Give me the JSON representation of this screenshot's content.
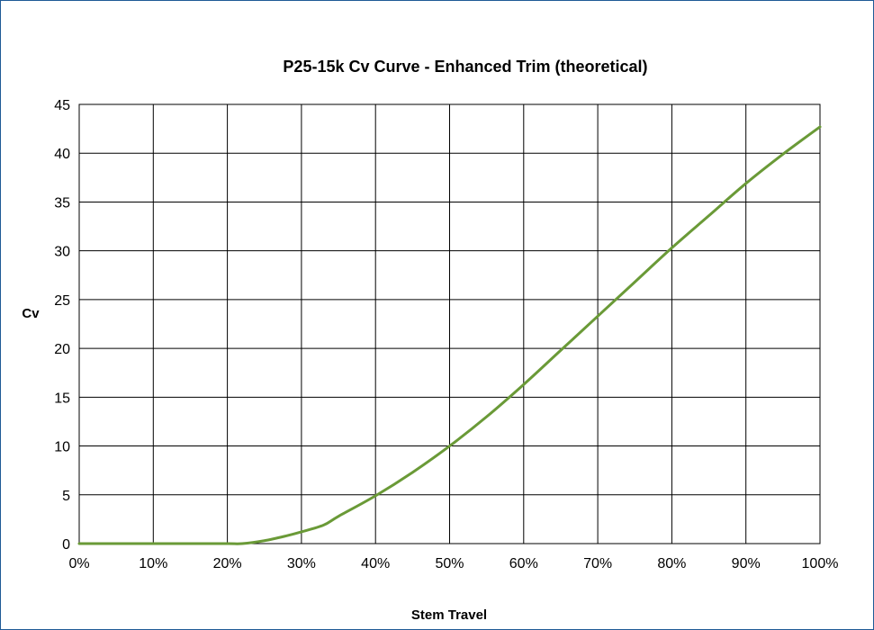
{
  "chart_data": {
    "type": "line",
    "title": "P25-15k Cv Curve - Enhanced Trim (theoretical)",
    "xlabel": "Stem Travel",
    "ylabel": "Cv",
    "xlim": [
      0,
      100
    ],
    "ylim": [
      0,
      45
    ],
    "x_ticks": [
      "0%",
      "10%",
      "20%",
      "30%",
      "40%",
      "50%",
      "60%",
      "70%",
      "80%",
      "90%",
      "100%"
    ],
    "y_ticks": [
      "0",
      "5",
      "10",
      "15",
      "20",
      "25",
      "30",
      "35",
      "40",
      "45"
    ],
    "grid": true,
    "legend": "none",
    "series": [
      {
        "color": "#6a9a37",
        "x": [
          0,
          5,
          10,
          15,
          20,
          22,
          25,
          28,
          30,
          33,
          35,
          40,
          45,
          50,
          55,
          60,
          65,
          70,
          75,
          80,
          85,
          90,
          95,
          100
        ],
        "y": [
          0,
          0,
          0,
          0,
          0,
          0,
          0.3,
          0.8,
          1.2,
          1.9,
          2.8,
          4.9,
          7.3,
          10,
          13,
          16.3,
          19.8,
          23.3,
          26.8,
          30.3,
          33.6,
          36.9,
          39.9,
          42.7
        ]
      }
    ]
  }
}
